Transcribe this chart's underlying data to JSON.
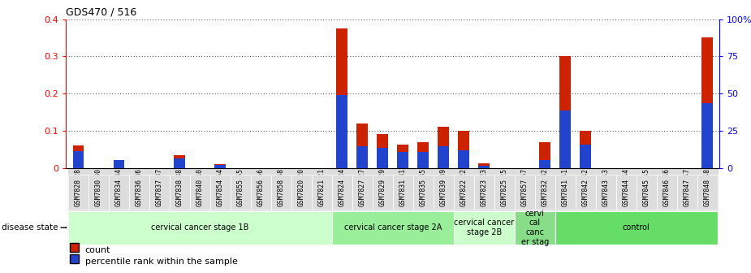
{
  "title": "GDS470 / 516",
  "samples": [
    "GSM7828",
    "GSM7830",
    "GSM7834",
    "GSM7836",
    "GSM7837",
    "GSM7838",
    "GSM7840",
    "GSM7854",
    "GSM7855",
    "GSM7856",
    "GSM7858",
    "GSM7820",
    "GSM7821",
    "GSM7824",
    "GSM7827",
    "GSM7829",
    "GSM7831",
    "GSM7835",
    "GSM7839",
    "GSM7822",
    "GSM7823",
    "GSM7825",
    "GSM7857",
    "GSM7832",
    "GSM7841",
    "GSM7842",
    "GSM7843",
    "GSM7844",
    "GSM7845",
    "GSM7846",
    "GSM7847",
    "GSM7848"
  ],
  "count_values": [
    0.06,
    0.0,
    0.022,
    0.0,
    0.0,
    0.035,
    0.0,
    0.01,
    0.0,
    0.0,
    0.0,
    0.0,
    0.0,
    0.375,
    0.12,
    0.09,
    0.062,
    0.07,
    0.11,
    0.1,
    0.012,
    0.0,
    0.0,
    0.07,
    0.3,
    0.1,
    0.0,
    0.0,
    0.0,
    0.0,
    0.0,
    0.35
  ],
  "percentile_values": [
    0.045,
    0.0,
    0.02,
    0.0,
    0.0,
    0.025,
    0.0,
    0.008,
    0.0,
    0.0,
    0.0,
    0.0,
    0.0,
    0.195,
    0.058,
    0.053,
    0.043,
    0.043,
    0.058,
    0.048,
    0.005,
    0.0,
    0.0,
    0.02,
    0.155,
    0.063,
    0.0,
    0.0,
    0.0,
    0.0,
    0.0,
    0.173
  ],
  "disease_groups": [
    {
      "label": "cervical cancer stage 1B",
      "start": 0,
      "end": 13,
      "color": "#ccffcc"
    },
    {
      "label": "cervical cancer stage 2A",
      "start": 13,
      "end": 19,
      "color": "#99ee99"
    },
    {
      "label": "cervical cancer\nstage 2B",
      "start": 19,
      "end": 22,
      "color": "#ccffcc"
    },
    {
      "label": "cervi\ncal\ncanc\ner stag",
      "start": 22,
      "end": 24,
      "color": "#88dd88"
    },
    {
      "label": "control",
      "start": 24,
      "end": 32,
      "color": "#66dd66"
    }
  ],
  "ylim_left": [
    0,
    0.4
  ],
  "ylim_right": [
    0,
    100
  ],
  "yticks_left": [
    0.0,
    0.1,
    0.2,
    0.3,
    0.4
  ],
  "ytick_labels_left": [
    "0",
    "0.1",
    "0.2",
    "0.3",
    "0.4"
  ],
  "yticks_right": [
    0,
    25,
    50,
    75,
    100
  ],
  "ytick_labels_right": [
    "0",
    "25",
    "50",
    "75",
    "100%"
  ],
  "bar_color_count": "#cc2200",
  "bar_color_percentile": "#2244cc",
  "bar_width": 0.55,
  "background_color": "#ffffff",
  "xticklabel_bg": "#dddddd",
  "disease_state_label": "disease state"
}
